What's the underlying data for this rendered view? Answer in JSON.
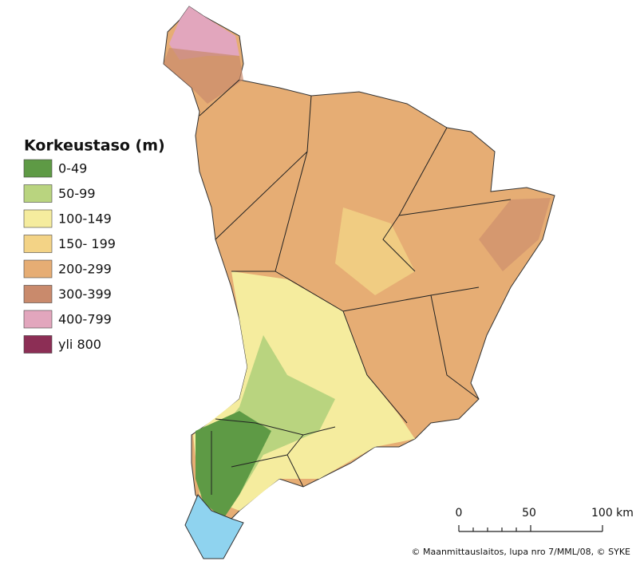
{
  "legend": {
    "title": "Korkeustaso (m)",
    "items": [
      {
        "label": "0-49",
        "color": "#5e9a45"
      },
      {
        "label": "50-99",
        "color": "#b9d47f"
      },
      {
        "label": "100-149",
        "color": "#f5ec9e"
      },
      {
        "label": "150- 199",
        "color": "#f3d386"
      },
      {
        "label": "200-299",
        "color": "#e6ad74"
      },
      {
        "label": "300-399",
        "color": "#c98a6c"
      },
      {
        "label": "400-799",
        "color": "#e2a6bd"
      },
      {
        "label": "yli 800",
        "color": "#8c2e55"
      }
    ]
  },
  "scale_bar": {
    "labels": [
      "0",
      "50",
      "100 km"
    ]
  },
  "credit": "© Maanmittauslaitos, lupa nro 7/MML/08, © SYKE"
}
